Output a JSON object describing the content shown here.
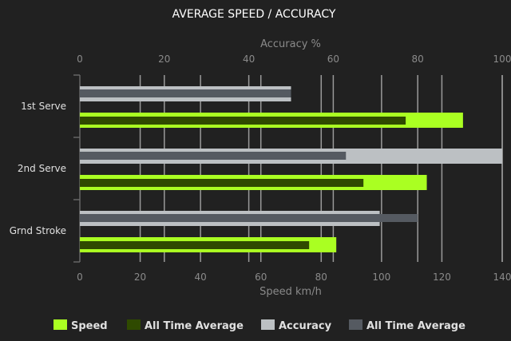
{
  "chart_data": {
    "type": "bar",
    "orientation": "horizontal",
    "title": "AVERAGE SPEED / ACCURACY",
    "categories": [
      "1st Serve",
      "2nd Serve",
      "Grnd Stroke"
    ],
    "top_axis": {
      "label": "Accuracy %",
      "range": [
        0,
        100
      ],
      "ticks": [
        0,
        20,
        40,
        60,
        80,
        100
      ]
    },
    "bottom_axis": {
      "label": "Speed km/h",
      "range": [
        0,
        140
      ],
      "ticks": [
        0,
        20,
        40,
        60,
        80,
        100,
        120,
        140
      ]
    },
    "grid": true,
    "legend_position": "bottom",
    "series": [
      {
        "name": "Speed",
        "axis": "speed",
        "color": "#aaff22",
        "values": [
          127,
          115,
          85
        ]
      },
      {
        "name": "All Time Average",
        "axis": "speed",
        "color": "#2f4a00",
        "values": [
          108,
          94,
          76
        ]
      },
      {
        "name": "Accuracy",
        "axis": "accuracy",
        "color": "#bcc0c3",
        "values": [
          50,
          100,
          71
        ]
      },
      {
        "name": "All Time Average",
        "axis": "accuracy",
        "color": "#555a61",
        "values": [
          50,
          63,
          80
        ]
      }
    ]
  }
}
